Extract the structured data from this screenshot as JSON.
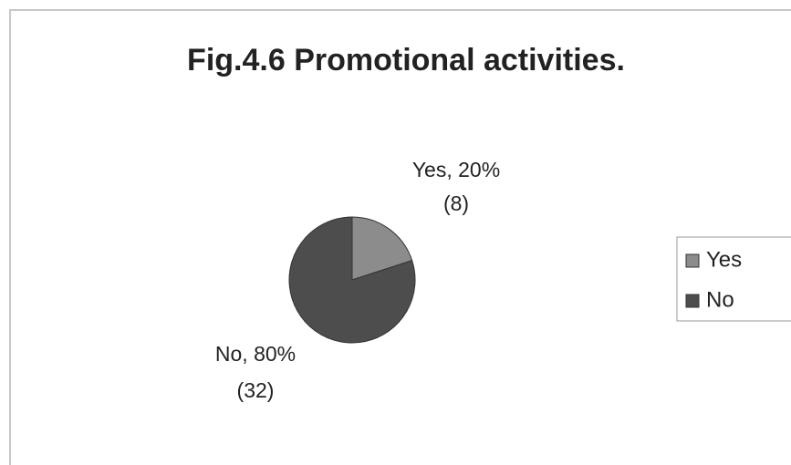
{
  "chart_data": {
    "type": "pie",
    "title": "Fig.4.6 Promotional activities.",
    "categories": [
      "Yes",
      "No"
    ],
    "values": [
      20,
      80
    ],
    "value_labels": [
      "Yes, 20%",
      "No, 80%"
    ],
    "count_labels": [
      "(8)",
      "(32)"
    ],
    "colors": [
      "#8c8c8c",
      "#4d4d4d"
    ],
    "legend": "right"
  }
}
